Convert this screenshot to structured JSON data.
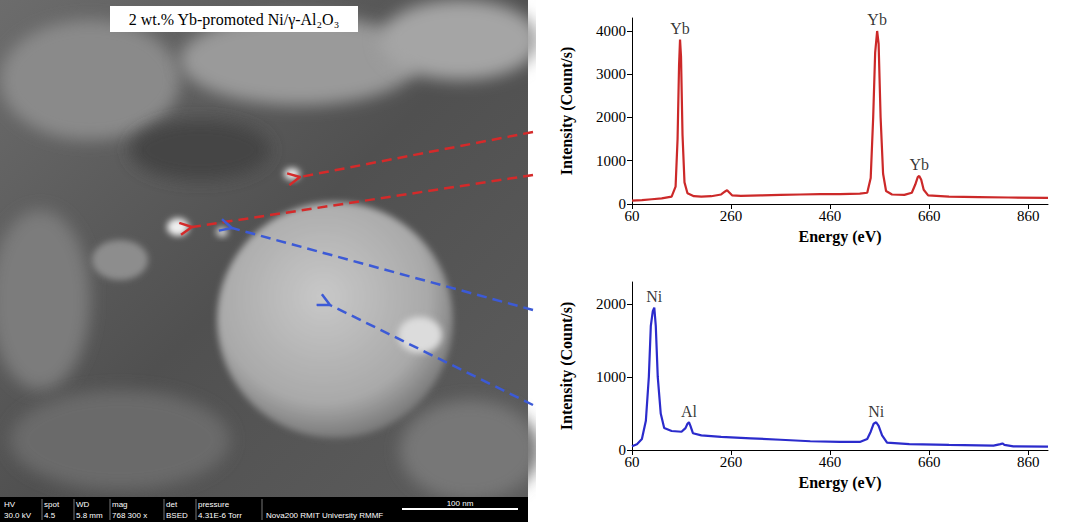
{
  "image": {
    "title": "2 wt.% Yb-promoted Ni/γ-Al₂O₃",
    "info_bar": [
      {
        "label": "HV",
        "value": "30.0 kV"
      },
      {
        "label": "spot",
        "value": "4.5"
      },
      {
        "label": "WD",
        "value": "5.8 mm"
      },
      {
        "label": "mag",
        "value": "768 300 x"
      },
      {
        "label": "det",
        "value": "BSED"
      },
      {
        "label": "pressure",
        "value": "4.31E-6 Torr"
      }
    ],
    "scale_bar": "100 nm",
    "instrument": "Nova200 RMIT University RMMF"
  },
  "chart_data": [
    {
      "type": "line",
      "color": "#cc2929",
      "xlabel": "Energy (eV)",
      "ylabel": "Intensity (Count/s)",
      "xlim": [
        60,
        900
      ],
      "xticks": [
        60,
        260,
        460,
        660,
        860
      ],
      "ylim": [
        0,
        4300
      ],
      "yticks": [
        0,
        1000,
        2000,
        3000,
        4000
      ],
      "grid": false,
      "x": [
        60,
        80,
        100,
        120,
        140,
        148,
        152,
        155,
        157,
        159,
        162,
        166,
        172,
        185,
        200,
        220,
        240,
        248,
        252,
        256,
        262,
        280,
        320,
        360,
        400,
        440,
        480,
        520,
        535,
        542,
        547,
        551,
        555,
        558,
        562,
        567,
        573,
        585,
        610,
        625,
        632,
        637,
        640,
        644,
        649,
        658,
        700,
        760,
        820,
        900
      ],
      "values": [
        80,
        90,
        110,
        130,
        170,
        400,
        1500,
        3200,
        3800,
        3400,
        1600,
        500,
        250,
        180,
        170,
        180,
        220,
        290,
        320,
        270,
        200,
        190,
        200,
        210,
        220,
        230,
        230,
        240,
        260,
        600,
        2000,
        3500,
        4000,
        3700,
        2000,
        700,
        300,
        220,
        210,
        260,
        450,
        620,
        650,
        560,
        330,
        200,
        170,
        160,
        150,
        140
      ],
      "annotations": [
        {
          "text": "Yb",
          "x": 157,
          "y": 3800
        },
        {
          "text": "Yb",
          "x": 555,
          "y": 4000
        },
        {
          "text": "Yb",
          "x": 640,
          "y": 650
        }
      ]
    },
    {
      "type": "line",
      "color": "#2b2bcc",
      "xlabel": "Energy (eV)",
      "ylabel": "Intensity (Count/s)",
      "xlim": [
        60,
        900
      ],
      "xticks": [
        60,
        260,
        460,
        660,
        860
      ],
      "ylim": [
        0,
        2300
      ],
      "yticks": [
        0,
        1000,
        2000
      ],
      "grid": false,
      "x": [
        60,
        70,
        80,
        88,
        94,
        98,
        102,
        105,
        108,
        112,
        118,
        125,
        140,
        160,
        168,
        172,
        175,
        178,
        183,
        200,
        240,
        300,
        360,
        420,
        480,
        520,
        535,
        542,
        548,
        553,
        558,
        565,
        575,
        620,
        700,
        790,
        804,
        808,
        812,
        830,
        900
      ],
      "values": [
        50,
        80,
        150,
        400,
        1000,
        1700,
        1900,
        1950,
        1700,
        1000,
        500,
        300,
        260,
        250,
        300,
        360,
        380,
        330,
        230,
        200,
        180,
        160,
        140,
        120,
        110,
        110,
        150,
        250,
        360,
        380,
        330,
        200,
        100,
        80,
        70,
        60,
        80,
        90,
        70,
        50,
        45
      ],
      "annotations": [
        {
          "text": "Ni",
          "x": 105,
          "y": 1950
        },
        {
          "text": "Al",
          "x": 175,
          "y": 380
        },
        {
          "text": "Ni",
          "x": 553,
          "y": 380
        }
      ]
    }
  ]
}
